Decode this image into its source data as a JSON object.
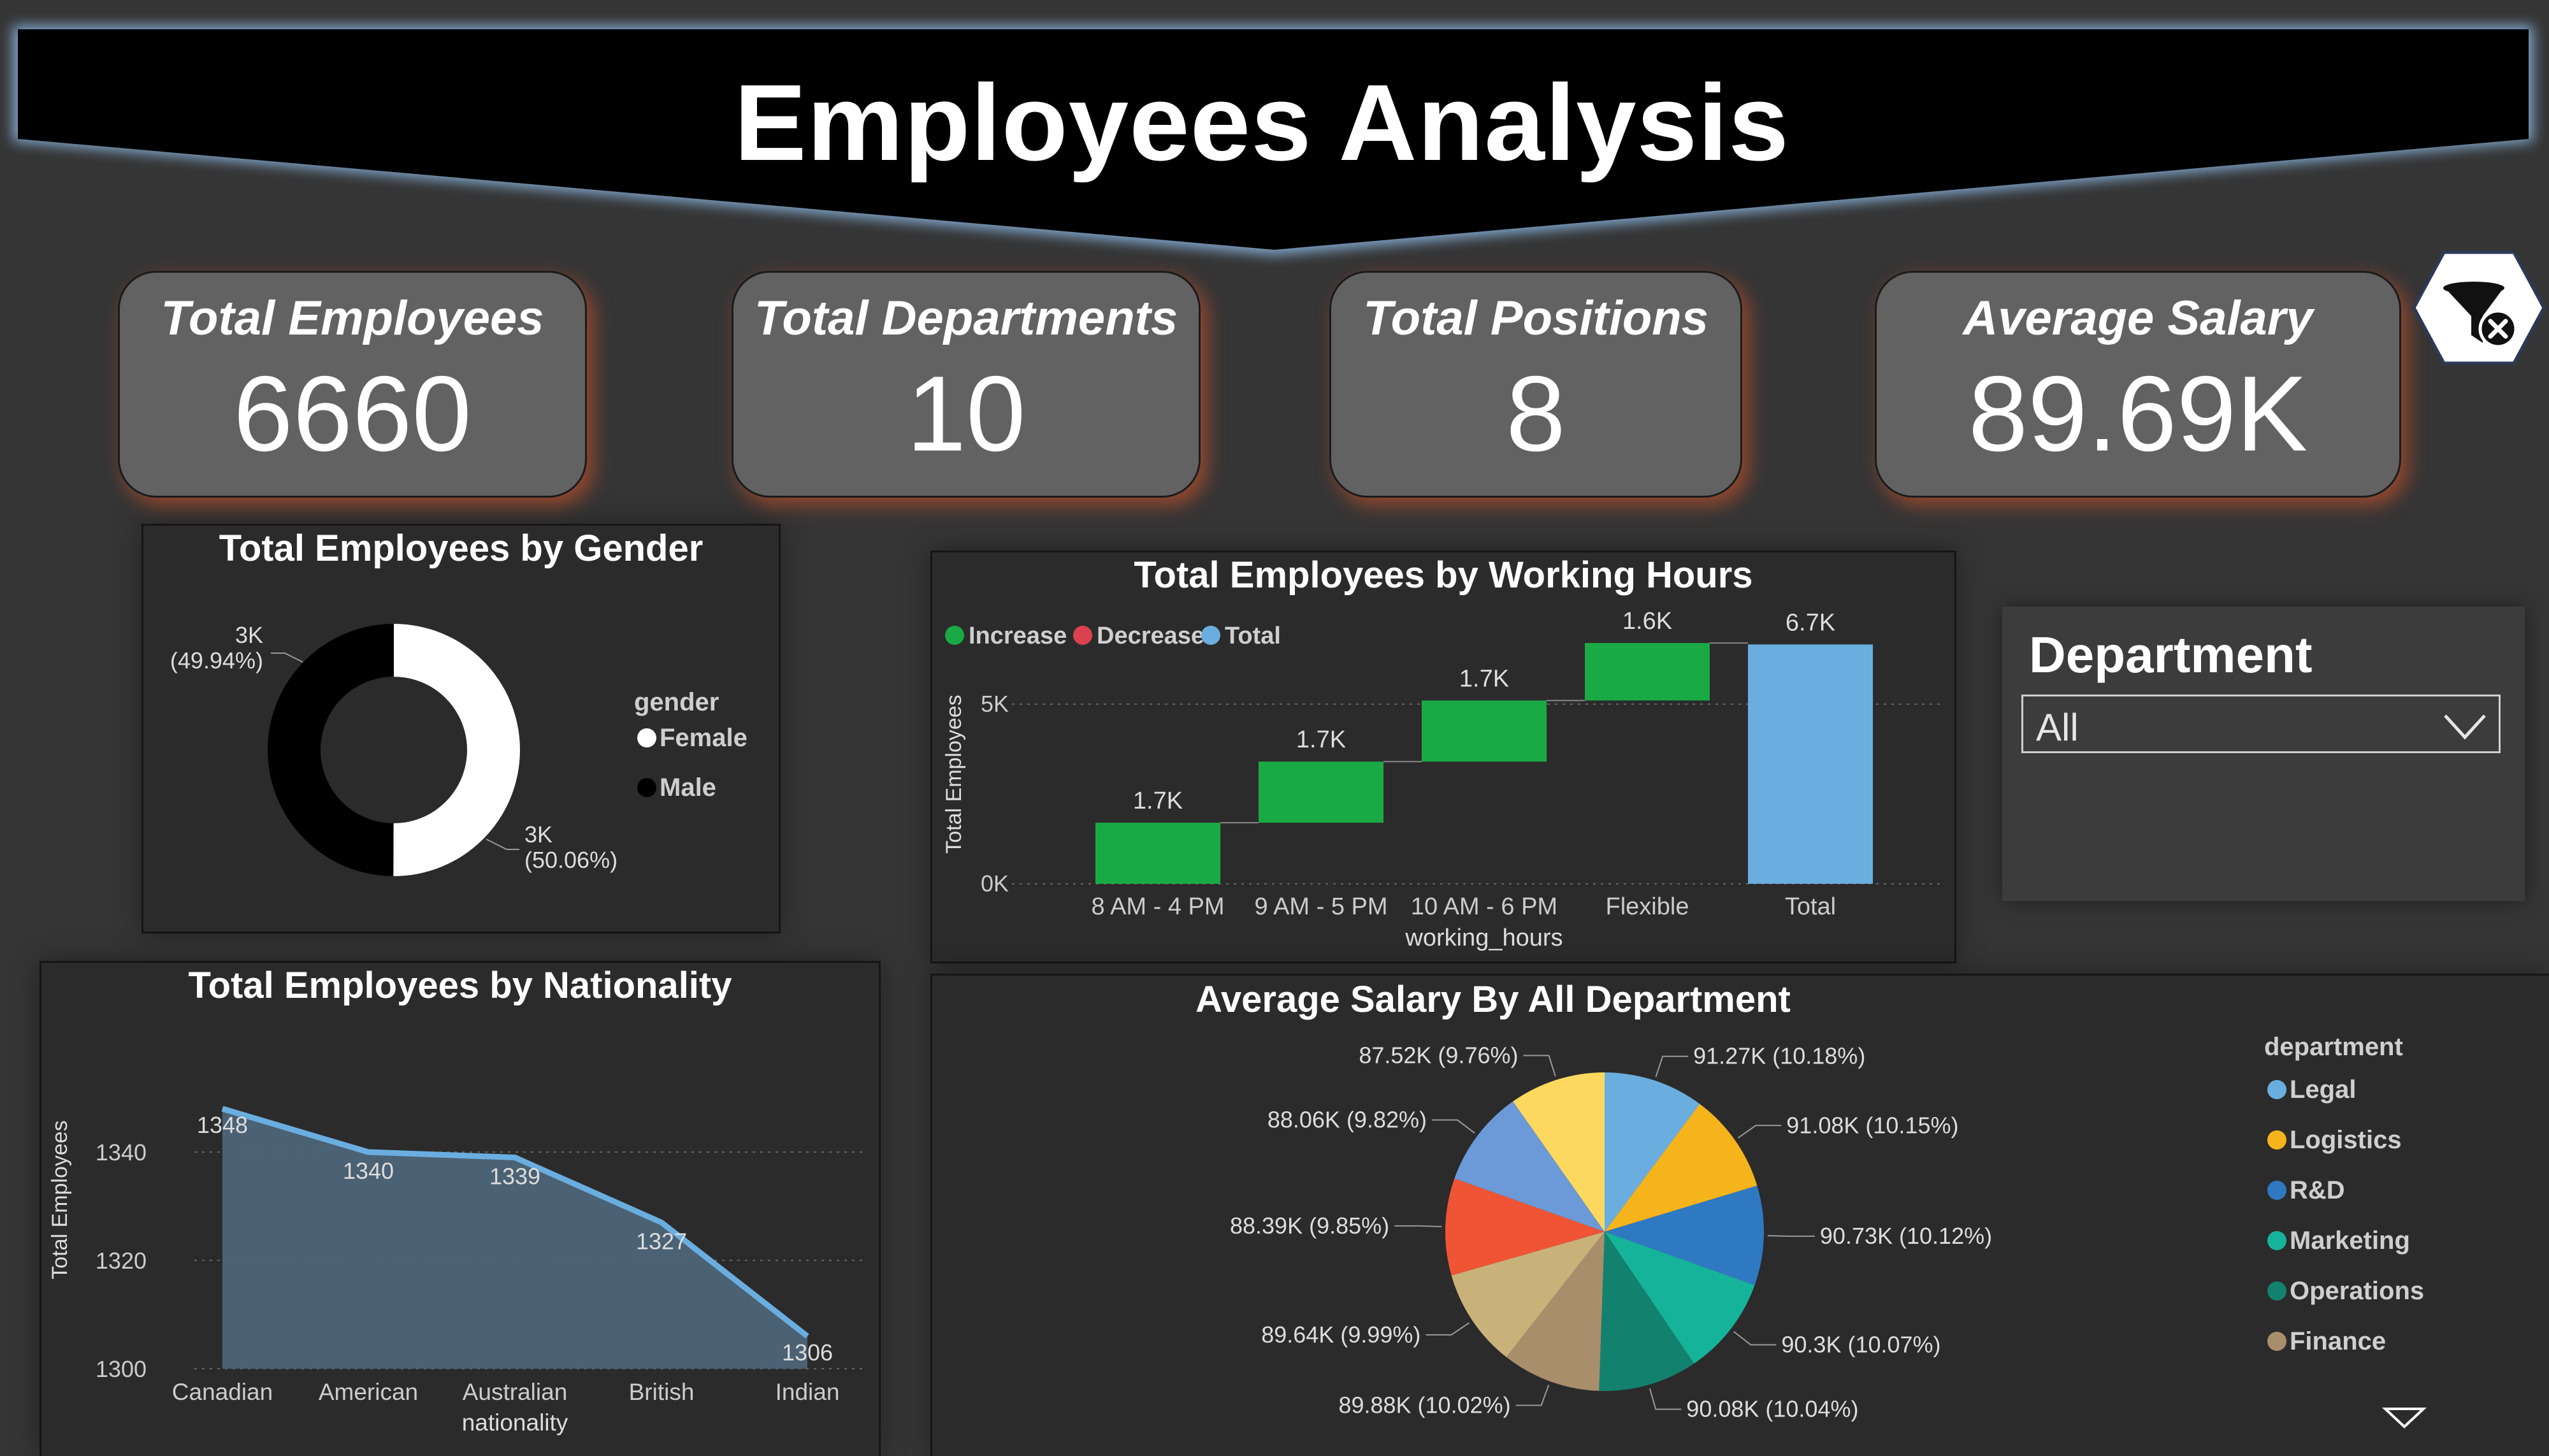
{
  "header": {
    "title": "Employees Analysis"
  },
  "kpis": [
    {
      "label": "Total Employees",
      "value": "6660"
    },
    {
      "label": "Total Departments",
      "value": "10"
    },
    {
      "label": "Total Positions",
      "value": "8"
    },
    {
      "label": "Average Salary",
      "value": "89.69K"
    }
  ],
  "slicer": {
    "title": "Department",
    "selected": "All"
  },
  "icons": {
    "clear_filters": "funnel-clear-icon",
    "dropdown": "chevron-down-icon",
    "legend_more": "triangle-down-icon"
  },
  "colors": {
    "accent_glow": "#ea5a28",
    "increase": "#1aaa45",
    "decrease": "#d9424e",
    "total": "#6aaee0",
    "area_line": "#6aaee0",
    "female": "#ffffff",
    "male": "#000000"
  },
  "chart_data": [
    {
      "id": "gender",
      "type": "pie",
      "title": "Total Employees by Gender",
      "legend_title": "gender",
      "legend_position": "right",
      "categories": [
        "Female",
        "Male"
      ],
      "values": [
        3334,
        3326
      ],
      "labels": [
        {
          "line1": "3K",
          "line2": "(50.06%)"
        },
        {
          "line1": "3K",
          "line2": "(49.94%)"
        }
      ]
    },
    {
      "id": "working_hours",
      "type": "bar",
      "subtype": "waterfall",
      "title": "Total Employees by Working Hours",
      "xlabel": "working_hours",
      "ylabel": "Total Employees",
      "legend": [
        "Increase",
        "Decrease",
        "Total"
      ],
      "legend_position": "top-left",
      "categories": [
        "8 AM - 4 PM",
        "9 AM - 5 PM",
        "10 AM - 6 PM",
        "Flexible",
        "Total"
      ],
      "values": [
        1700,
        1700,
        1700,
        1600,
        6660
      ],
      "data_labels": [
        "1.7K",
        "1.7K",
        "1.7K",
        "1.6K",
        "6.7K"
      ],
      "yticks": [
        "0K",
        "5K"
      ],
      "ytick_values": [
        0,
        5000
      ],
      "ylim": [
        0,
        7000
      ],
      "grid": true
    },
    {
      "id": "nationality",
      "type": "area",
      "title": "Total Employees by Nationality",
      "xlabel": "nationality",
      "ylabel": "Total Employees",
      "categories": [
        "Canadian",
        "American",
        "Australian",
        "British",
        "Indian"
      ],
      "values": [
        1348,
        1340,
        1339,
        1327,
        1306
      ],
      "yticks": [
        1300,
        1320,
        1340
      ],
      "ylim": [
        1300,
        1350
      ],
      "grid": true
    },
    {
      "id": "salary",
      "type": "pie",
      "title": "Average Salary By All Department",
      "legend_title": "department",
      "legend_position": "right",
      "legend": [
        "Legal",
        "Logistics",
        "R&D",
        "Marketing",
        "Operations",
        "Finance"
      ],
      "slices": [
        {
          "value": 91270,
          "label": "91.27K (10.18%)",
          "color": "#6aaee0"
        },
        {
          "value": 91080,
          "label": "91.08K (10.15%)",
          "color": "#f5b41c"
        },
        {
          "value": 90730,
          "label": "90.73K (10.12%)",
          "color": "#2f78c2"
        },
        {
          "value": 90300,
          "label": "90.3K (10.07%)",
          "color": "#16b39b"
        },
        {
          "value": 90080,
          "label": "90.08K (10.04%)",
          "color": "#12826f"
        },
        {
          "value": 89880,
          "label": "89.88K (10.02%)",
          "color": "#a98e6c"
        },
        {
          "value": 89640,
          "label": "89.64K (9.99%)",
          "color": "#c9b17a"
        },
        {
          "value": 88390,
          "label": "88.39K (9.85%)",
          "color": "#ef5434"
        },
        {
          "value": 88060,
          "label": "88.06K (9.82%)",
          "color": "#6c9ad8"
        },
        {
          "value": 87520,
          "label": "87.52K (9.76%)",
          "color": "#fcd95e"
        }
      ],
      "legend_colors": [
        "#6aaee0",
        "#f5b41c",
        "#2f78c2",
        "#16b39b",
        "#12826f",
        "#a98e6c"
      ]
    }
  ]
}
